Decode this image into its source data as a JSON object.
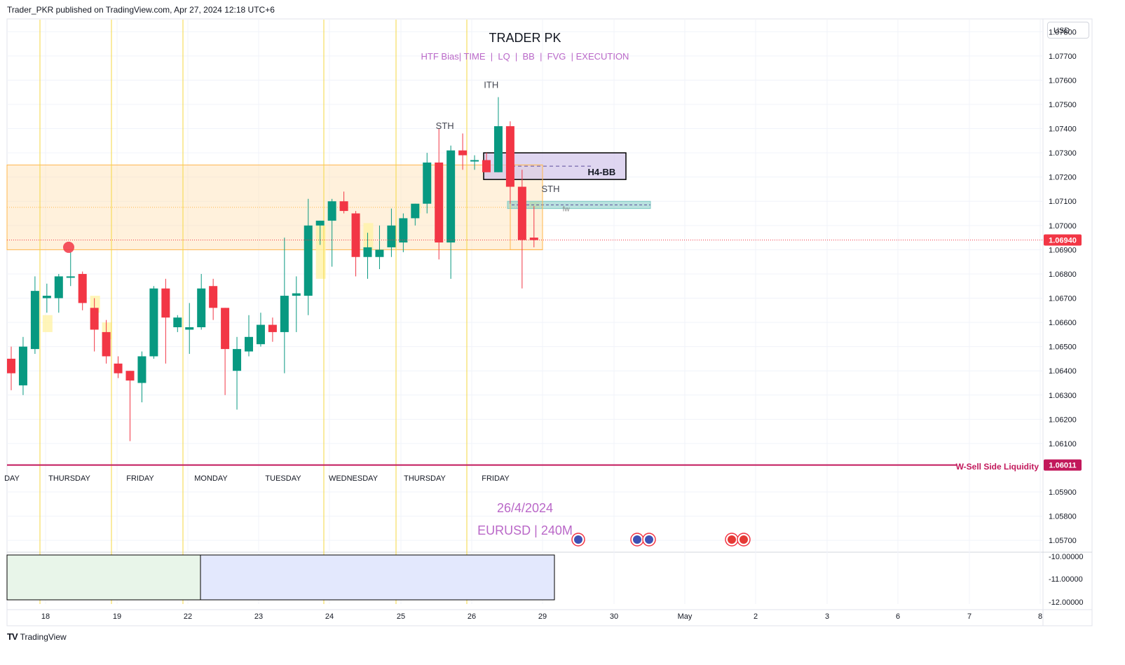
{
  "header": {
    "attribution": "Trader_PKR published on TradingView.com, Apr 27, 2024 12:18 UTC+6"
  },
  "footer": {
    "logo": "TV",
    "brand": "TradingView"
  },
  "currency_button": "USD",
  "colors": {
    "up": "#089981",
    "down": "#f23645",
    "grid": "#f0f3fa",
    "session_line": "#f5d742",
    "price_line": "#f23645",
    "liquidity": "#c2185b",
    "fvg": "#fff3a8",
    "zone": "#ffe0b2",
    "purple_text": "#ba68c8"
  },
  "chart_data": {
    "type": "candlestick",
    "title": "TRADER PK",
    "subtitle": "HTF Bias| TIME  |  LQ  |  BB  |  FVG  | EXECUTION",
    "date_label": "26/4/2024",
    "symbol_label": "EURUSD | 240M",
    "ylim": [
      1.0566,
      1.0785
    ],
    "y_ticks": [
      "1.07800",
      "1.07700",
      "1.07600",
      "1.07500",
      "1.07400",
      "1.07300",
      "1.07200",
      "1.07100",
      "1.07000",
      "1.06900",
      "1.06800",
      "1.06700",
      "1.06600",
      "1.06500",
      "1.06400",
      "1.06300",
      "1.06200",
      "1.06100",
      "1.05900",
      "1.05800",
      "1.05700"
    ],
    "x_ticks": [
      "18",
      "19",
      "22",
      "23",
      "24",
      "25",
      "26",
      "29",
      "30",
      "May",
      "2",
      "3",
      "6",
      "7",
      "8"
    ],
    "day_labels": [
      "DAY",
      "THURSDAY",
      "FRIDAY",
      "MONDAY",
      "TUESDAY",
      "WEDNESDAY",
      "THURSDAY",
      "FRIDAY"
    ],
    "current_price": "1.06940",
    "liquidity_price": "1.06011",
    "liquidity_label": "W-Sell Side Liquidity",
    "annotations": [
      {
        "text": "ITH",
        "bar": 40.4,
        "price": 1.0758
      },
      {
        "text": "STH",
        "bar": 36.5,
        "price": 1.0741
      },
      {
        "text": "STH",
        "bar": 45.4,
        "price": 1.0715
      },
      {
        "text": "H4-BB",
        "bar": 49.7,
        "price": 1.0722
      },
      {
        "text": "fw",
        "bar": 46.7,
        "price": 1.0707
      }
    ],
    "indicator_ticks": [
      "-10.00000",
      "-11.00000",
      "-12.00000"
    ],
    "candles": [
      {
        "o": 1.0645,
        "h": 1.065,
        "l": 1.0632,
        "c": 1.0639
      },
      {
        "o": 1.0634,
        "h": 1.0654,
        "l": 1.063,
        "c": 1.065
      },
      {
        "o": 1.0649,
        "h": 1.0679,
        "l": 1.0647,
        "c": 1.0673
      },
      {
        "o": 1.067,
        "h": 1.0676,
        "l": 1.0664,
        "c": 1.0671
      },
      {
        "o": 1.067,
        "h": 1.068,
        "l": 1.0664,
        "c": 1.0679
      },
      {
        "o": 1.0679,
        "h": 1.0689,
        "l": 1.0675,
        "c": 1.0679
      },
      {
        "o": 1.068,
        "h": 1.0681,
        "l": 1.0665,
        "c": 1.0668
      },
      {
        "o": 1.0666,
        "h": 1.067,
        "l": 1.0648,
        "c": 1.0657
      },
      {
        "o": 1.0656,
        "h": 1.0661,
        "l": 1.0643,
        "c": 1.0646
      },
      {
        "o": 1.0643,
        "h": 1.0646,
        "l": 1.0637,
        "c": 1.0639
      },
      {
        "o": 1.064,
        "h": 1.064,
        "l": 1.0611,
        "c": 1.0636
      },
      {
        "o": 1.0635,
        "h": 1.0648,
        "l": 1.0627,
        "c": 1.0646
      },
      {
        "o": 1.0646,
        "h": 1.0675,
        "l": 1.0645,
        "c": 1.0674
      },
      {
        "o": 1.0674,
        "h": 1.0678,
        "l": 1.0643,
        "c": 1.0662
      },
      {
        "o": 1.0658,
        "h": 1.0663,
        "l": 1.0656,
        "c": 1.0662
      },
      {
        "o": 1.0657,
        "h": 1.0668,
        "l": 1.0647,
        "c": 1.0658
      },
      {
        "o": 1.0658,
        "h": 1.068,
        "l": 1.0657,
        "c": 1.0674
      },
      {
        "o": 1.0675,
        "h": 1.0678,
        "l": 1.0661,
        "c": 1.0666
      },
      {
        "o": 1.0666,
        "h": 1.0666,
        "l": 1.063,
        "c": 1.0649
      },
      {
        "o": 1.064,
        "h": 1.0654,
        "l": 1.0624,
        "c": 1.0649
      },
      {
        "o": 1.0648,
        "h": 1.0663,
        "l": 1.0646,
        "c": 1.0654
      },
      {
        "o": 1.0651,
        "h": 1.0664,
        "l": 1.065,
        "c": 1.0659
      },
      {
        "o": 1.0659,
        "h": 1.0662,
        "l": 1.0652,
        "c": 1.0656
      },
      {
        "o": 1.0656,
        "h": 1.0695,
        "l": 1.0639,
        "c": 1.0671
      },
      {
        "o": 1.0671,
        "h": 1.0679,
        "l": 1.0656,
        "c": 1.0672
      },
      {
        "o": 1.0671,
        "h": 1.0711,
        "l": 1.0663,
        "c": 1.07
      },
      {
        "o": 1.07,
        "h": 1.0702,
        "l": 1.0692,
        "c": 1.0702
      },
      {
        "o": 1.0702,
        "h": 1.0711,
        "l": 1.0683,
        "c": 1.071
      },
      {
        "o": 1.071,
        "h": 1.0714,
        "l": 1.0705,
        "c": 1.0706
      },
      {
        "o": 1.0705,
        "h": 1.0706,
        "l": 1.0679,
        "c": 1.0687
      },
      {
        "o": 1.0687,
        "h": 1.0697,
        "l": 1.0678,
        "c": 1.0691
      },
      {
        "o": 1.0687,
        "h": 1.07,
        "l": 1.0682,
        "c": 1.069
      },
      {
        "o": 1.0691,
        "h": 1.0707,
        "l": 1.0687,
        "c": 1.07
      },
      {
        "o": 1.0693,
        "h": 1.0705,
        "l": 1.0689,
        "c": 1.0703
      },
      {
        "o": 1.0703,
        "h": 1.0709,
        "l": 1.07,
        "c": 1.0709
      },
      {
        "o": 1.0709,
        "h": 1.073,
        "l": 1.0705,
        "c": 1.0726
      },
      {
        "o": 1.0726,
        "h": 1.074,
        "l": 1.0686,
        "c": 1.0693
      },
      {
        "o": 1.0693,
        "h": 1.0733,
        "l": 1.0678,
        "c": 1.0731
      },
      {
        "o": 1.0731,
        "h": 1.0738,
        "l": 1.0723,
        "c": 1.0729
      },
      {
        "o": 1.0727,
        "h": 1.0729,
        "l": 1.0723,
        "c": 1.0727
      },
      {
        "o": 1.0727,
        "h": 1.073,
        "l": 1.0722,
        "c": 1.0722
      },
      {
        "o": 1.0722,
        "h": 1.0753,
        "l": 1.0722,
        "c": 1.0741
      },
      {
        "o": 1.0741,
        "h": 1.0743,
        "l": 1.0709,
        "c": 1.0716
      },
      {
        "o": 1.0716,
        "h": 1.0723,
        "l": 1.0674,
        "c": 1.0694
      },
      {
        "o": 1.0695,
        "h": 1.0708,
        "l": 1.0691,
        "c": 1.0694
      }
    ]
  }
}
